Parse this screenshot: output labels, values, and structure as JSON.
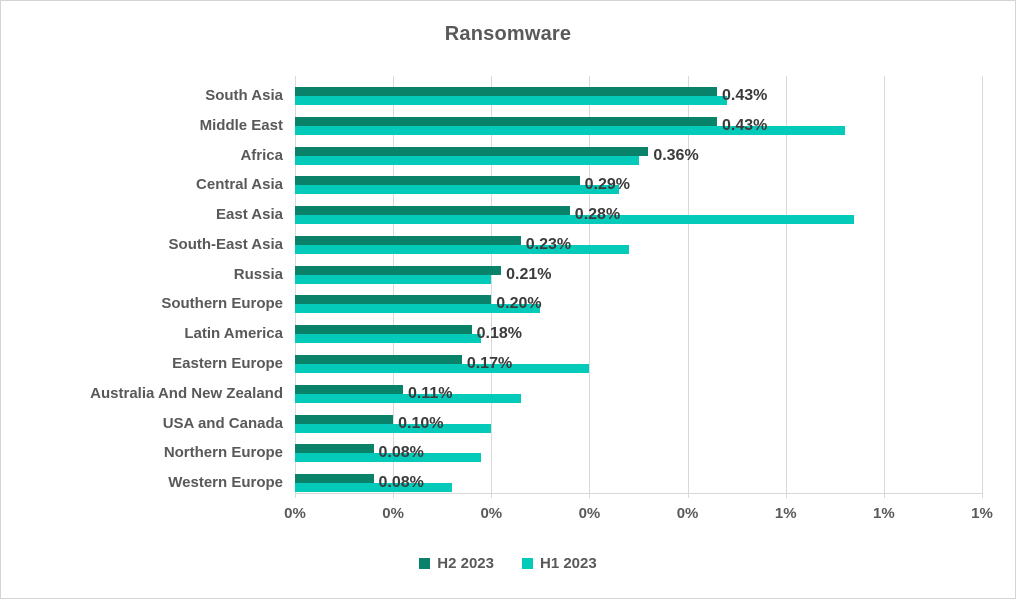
{
  "window": {
    "background": "#FFFFFF",
    "border_color": "#D5D5D5"
  },
  "styles": {
    "title_color": "#595959",
    "axis_label_color": "#595959",
    "data_label_color": "#3B3B3B",
    "gridline_color": "#D9D9D9"
  },
  "chart_data": {
    "type": "bar",
    "orientation": "horizontal",
    "title": "Ransomware",
    "categories": [
      "South Asia",
      "Middle East",
      "Africa",
      "Central Asia",
      "East Asia",
      "South-East Asia",
      "Russia",
      "Southern Europe",
      "Latin America",
      "Eastern Europe",
      "Australia And New Zealand",
      "USA and Canada",
      "Northern Europe",
      "Western Europe"
    ],
    "series": [
      {
        "name": "H2 2023",
        "color": "#0A8169",
        "values_pct": [
          0.43,
          0.43,
          0.36,
          0.29,
          0.28,
          0.23,
          0.21,
          0.2,
          0.18,
          0.17,
          0.11,
          0.1,
          0.08,
          0.08
        ],
        "data_labels": [
          "0.43%",
          "0.43%",
          "0.36%",
          "0.29%",
          "0.28%",
          "0.23%",
          "0.21%",
          "0.20%",
          "0.18%",
          "0.17%",
          "0.11%",
          "0.10%",
          "0.08%",
          "0.08%"
        ]
      },
      {
        "name": "H1 2023",
        "color": "#04CBB9",
        "values_pct": [
          0.44,
          0.56,
          0.35,
          0.33,
          0.57,
          0.34,
          0.2,
          0.25,
          0.19,
          0.3,
          0.23,
          0.2,
          0.19,
          0.16
        ],
        "data_labels": []
      }
    ],
    "data_label_series": "H2 2023",
    "xlim": [
      0,
      0.7
    ],
    "x_tick_step": 0.1,
    "x_tick_labels": [
      "0%",
      "0%",
      "0%",
      "0%",
      "0%",
      "1%",
      "1%",
      "1%"
    ],
    "grid": true,
    "legend_position": "bottom"
  }
}
